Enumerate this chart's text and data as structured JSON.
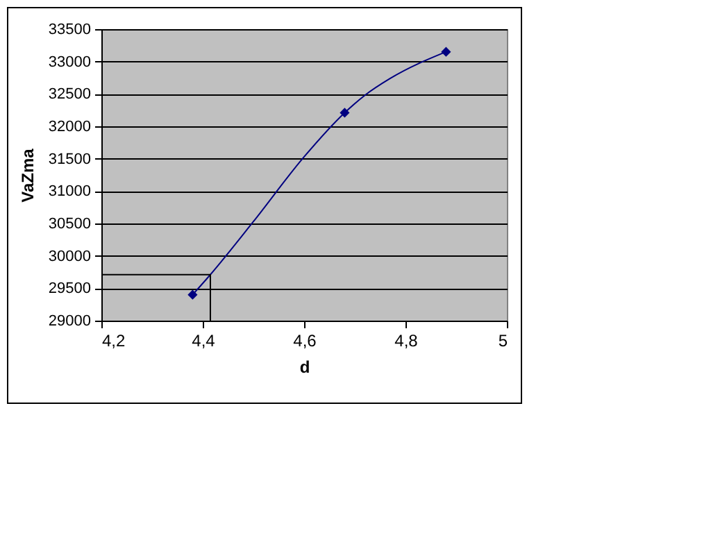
{
  "chart_data": {
    "type": "line",
    "xlabel": "d",
    "ylabel": "VaZma",
    "xlim": [
      4.2,
      5
    ],
    "xticks": [
      {
        "value": 4.2,
        "label": "4,2"
      },
      {
        "value": 4.4,
        "label": "4,4"
      },
      {
        "value": 4.6,
        "label": "4,6"
      },
      {
        "value": 4.8,
        "label": "4,8"
      },
      5
    ],
    "ylim": [
      29000,
      33500
    ],
    "yticks": [
      29000,
      29500,
      30000,
      30500,
      31000,
      31500,
      32000,
      32500,
      33000,
      33500
    ],
    "grid": "y",
    "series": [
      {
        "type": "line",
        "color": "#000080",
        "marker": "none",
        "x": [
          4.38,
          4.415,
          4.5,
          4.6,
          4.68,
          4.72,
          4.77,
          4.88
        ],
        "values": [
          29400,
          29710,
          30530,
          31530,
          32210,
          32480,
          32740,
          33150
        ]
      },
      {
        "type": "line",
        "color": "#000000",
        "marker": "none",
        "x": [
          4.2,
          4.415,
          4.415
        ],
        "values": [
          29710,
          29710,
          29000
        ]
      },
      {
        "type": "scatter",
        "color": "#000080",
        "marker": "diamond",
        "x": [
          4.38,
          4.68,
          4.88
        ],
        "values": [
          29400,
          32210,
          33150
        ]
      }
    ]
  }
}
